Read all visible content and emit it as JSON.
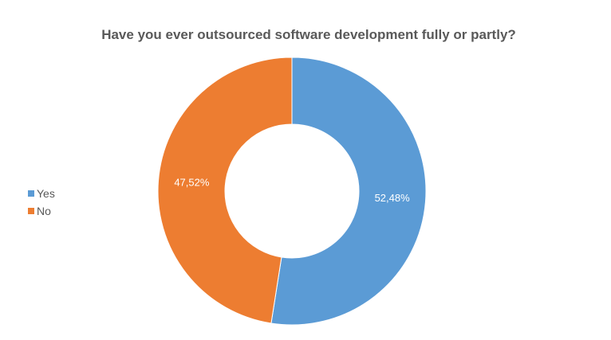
{
  "chart_data": {
    "type": "pie",
    "title": "Have you ever outsourced software development fully or partly?",
    "donut": true,
    "categories": [
      "Yes",
      "No"
    ],
    "values": [
      52.48,
      47.52
    ],
    "data_labels": [
      "52,48%",
      "47,52%"
    ],
    "colors": [
      "#5B9BD5",
      "#ED7D31"
    ],
    "legend_placement": "left",
    "legend": [
      {
        "label": "Yes",
        "color": "#5B9BD5"
      },
      {
        "label": "No",
        "color": "#ED7D31"
      }
    ]
  }
}
